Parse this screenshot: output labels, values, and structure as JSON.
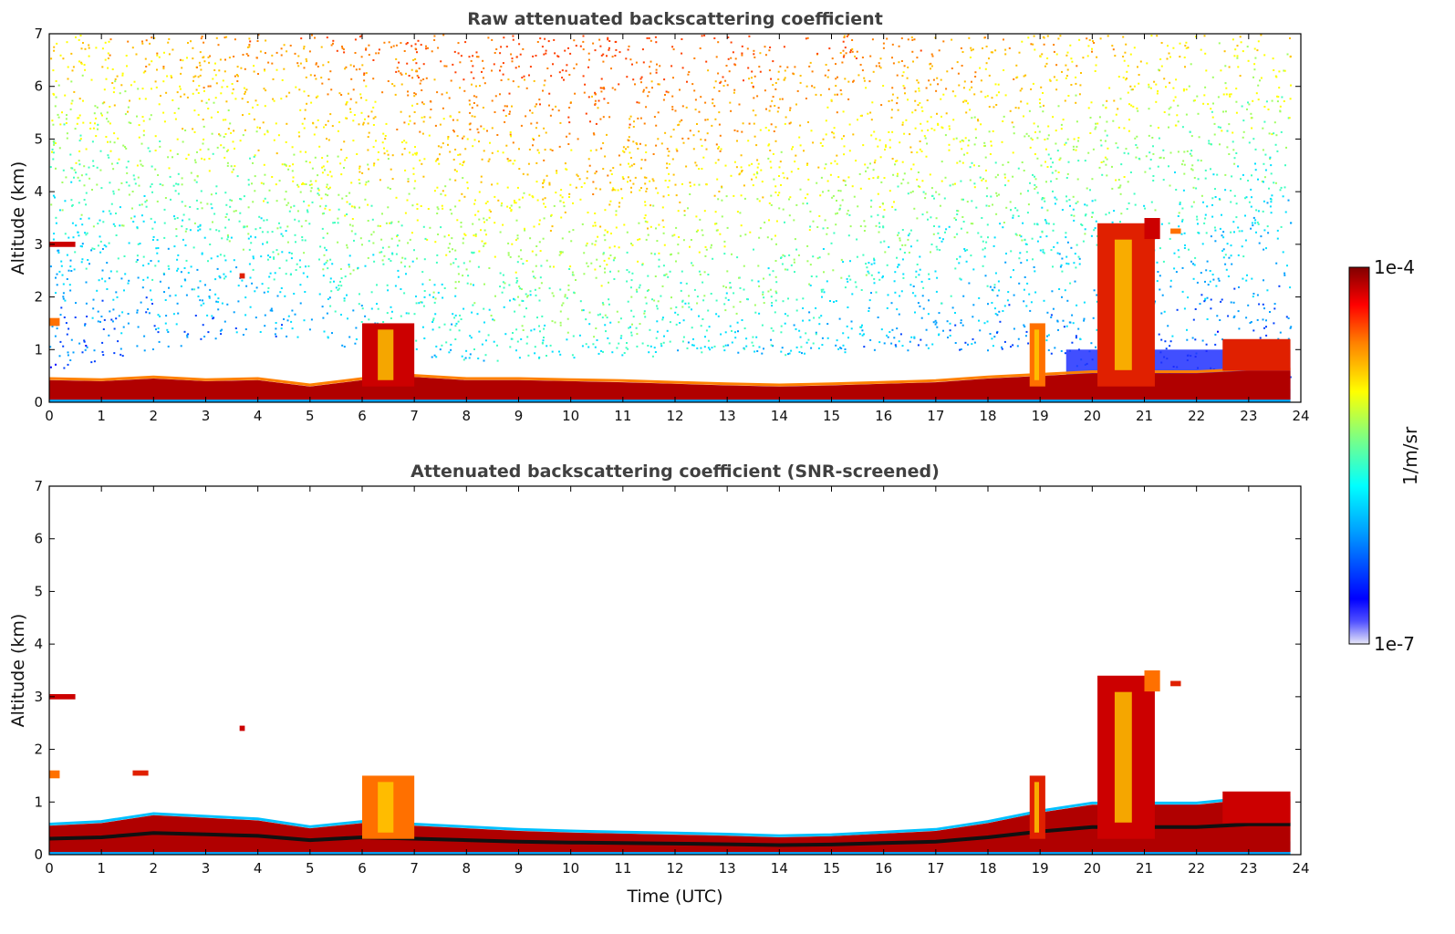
{
  "chart_data": [
    {
      "type": "heatmap",
      "title": "Raw attenuated backscattering coefficient",
      "xlabel": "",
      "ylabel": "Altitude (km)",
      "xlim": [
        0,
        24
      ],
      "ylim": [
        0,
        7
      ],
      "x_ticks": [
        "0",
        "1",
        "2",
        "3",
        "4",
        "5",
        "6",
        "7",
        "8",
        "9",
        "10",
        "11",
        "12",
        "13",
        "14",
        "15",
        "16",
        "17",
        "18",
        "19",
        "20",
        "21",
        "22",
        "23",
        "24"
      ],
      "y_ticks": [
        "0",
        "1",
        "2",
        "3",
        "4",
        "5",
        "6",
        "7"
      ],
      "data_extent_x": [
        0,
        23.8
      ],
      "features": {
        "boundary_layer_top_km": [
          [
            0,
            0.42
          ],
          [
            1,
            0.4
          ],
          [
            2,
            0.45
          ],
          [
            3,
            0.4
          ],
          [
            4,
            0.42
          ],
          [
            5,
            0.3
          ],
          [
            6,
            0.42
          ],
          [
            7,
            0.48
          ],
          [
            8,
            0.42
          ],
          [
            9,
            0.42
          ],
          [
            10,
            0.4
          ],
          [
            11,
            0.38
          ],
          [
            12,
            0.35
          ],
          [
            13,
            0.32
          ],
          [
            14,
            0.3
          ],
          [
            15,
            0.32
          ],
          [
            16,
            0.35
          ],
          [
            17,
            0.38
          ],
          [
            18,
            0.45
          ],
          [
            19,
            0.5
          ],
          [
            20,
            0.55
          ],
          [
            21,
            0.55
          ],
          [
            22,
            0.55
          ],
          [
            23,
            0.6
          ],
          [
            23.8,
            0.6
          ]
        ],
        "noise_cutoff_km": [
          [
            0,
            0.6
          ],
          [
            2,
            1.0
          ],
          [
            4,
            1.3
          ],
          [
            6,
            1.0
          ],
          [
            8,
            0.8
          ],
          [
            10,
            0.8
          ],
          [
            12,
            0.9
          ],
          [
            14,
            0.9
          ],
          [
            16,
            1.0
          ],
          [
            18,
            1.0
          ],
          [
            19.5,
            0.9
          ],
          [
            20,
            0.3
          ],
          [
            21,
            0.3
          ],
          [
            23.8,
            0.3
          ]
        ],
        "cloud_layers": [
          {
            "x": [
              0.0,
              0.5
            ],
            "altitude_km": [
              2.95,
              3.05
            ]
          },
          {
            "x": [
              0.0,
              0.2
            ],
            "altitude_km": [
              1.45,
              1.6
            ]
          },
          {
            "x": [
              3.65,
              3.75
            ],
            "altitude_km": [
              2.35,
              2.45
            ]
          },
          {
            "x": [
              6.0,
              7.0
            ],
            "altitude_km": [
              0.3,
              1.5
            ]
          },
          {
            "x": [
              18.8,
              19.1
            ],
            "altitude_km": [
              0.3,
              1.5
            ]
          },
          {
            "x": [
              20.1,
              21.2
            ],
            "altitude_km": [
              0.3,
              3.4
            ]
          },
          {
            "x": [
              21.0,
              21.3
            ],
            "altitude_km": [
              3.1,
              3.5
            ]
          },
          {
            "x": [
              21.5,
              21.7
            ],
            "altitude_km": [
              3.2,
              3.3
            ]
          },
          {
            "x": [
              22.5,
              23.8
            ],
            "altitude_km": [
              0.6,
              1.2
            ]
          }
        ]
      }
    },
    {
      "type": "heatmap",
      "title": "Attenuated backscattering coefficient (SNR-screened)",
      "xlabel": "Time (UTC)",
      "ylabel": "Altitude (km)",
      "xlim": [
        0,
        24
      ],
      "ylim": [
        0,
        7
      ],
      "x_ticks": [
        "0",
        "1",
        "2",
        "3",
        "4",
        "5",
        "6",
        "7",
        "8",
        "9",
        "10",
        "11",
        "12",
        "13",
        "14",
        "15",
        "16",
        "17",
        "18",
        "19",
        "20",
        "21",
        "22",
        "23",
        "24"
      ],
      "y_ticks": [
        "0",
        "1",
        "2",
        "3",
        "4",
        "5",
        "6",
        "7"
      ],
      "data_extent_x": [
        0,
        23.8
      ],
      "features": {
        "boundary_layer_top_km": [
          [
            0,
            0.55
          ],
          [
            1,
            0.6
          ],
          [
            2,
            0.75
          ],
          [
            3,
            0.7
          ],
          [
            4,
            0.65
          ],
          [
            5,
            0.5
          ],
          [
            6,
            0.6
          ],
          [
            7,
            0.55
          ],
          [
            8,
            0.5
          ],
          [
            9,
            0.45
          ],
          [
            10,
            0.42
          ],
          [
            11,
            0.4
          ],
          [
            12,
            0.38
          ],
          [
            13,
            0.36
          ],
          [
            14,
            0.33
          ],
          [
            15,
            0.35
          ],
          [
            16,
            0.4
          ],
          [
            17,
            0.45
          ],
          [
            18,
            0.6
          ],
          [
            19,
            0.8
          ],
          [
            20,
            0.95
          ],
          [
            21,
            0.95
          ],
          [
            22,
            0.95
          ],
          [
            23,
            1.05
          ],
          [
            23.8,
            1.05
          ]
        ],
        "cloud_layers": [
          {
            "x": [
              0.0,
              0.5
            ],
            "altitude_km": [
              2.95,
              3.05
            ]
          },
          {
            "x": [
              0.0,
              0.2
            ],
            "altitude_km": [
              1.45,
              1.6
            ]
          },
          {
            "x": [
              1.6,
              1.9
            ],
            "altitude_km": [
              1.5,
              1.6
            ]
          },
          {
            "x": [
              3.65,
              3.75
            ],
            "altitude_km": [
              2.35,
              2.45
            ]
          },
          {
            "x": [
              6.0,
              7.0
            ],
            "altitude_km": [
              0.3,
              1.5
            ]
          },
          {
            "x": [
              18.8,
              19.1
            ],
            "altitude_km": [
              0.3,
              1.5
            ]
          },
          {
            "x": [
              20.1,
              21.2
            ],
            "altitude_km": [
              0.3,
              3.4
            ]
          },
          {
            "x": [
              21.0,
              21.3
            ],
            "altitude_km": [
              3.1,
              3.5
            ]
          },
          {
            "x": [
              21.5,
              21.7
            ],
            "altitude_km": [
              3.2,
              3.3
            ]
          },
          {
            "x": [
              22.5,
              23.8
            ],
            "altitude_km": [
              0.6,
              1.2
            ]
          }
        ]
      }
    }
  ],
  "colorbar": {
    "label": "1/m/sr",
    "max_label": "1e-4",
    "min_label": "1e-7",
    "scale": "log",
    "colormap": "jet",
    "stops": [
      "#e8e8f8",
      "#0000ff",
      "#00a0ff",
      "#00ffff",
      "#80ff80",
      "#ffff00",
      "#ff8000",
      "#ff0000",
      "#800000"
    ]
  }
}
